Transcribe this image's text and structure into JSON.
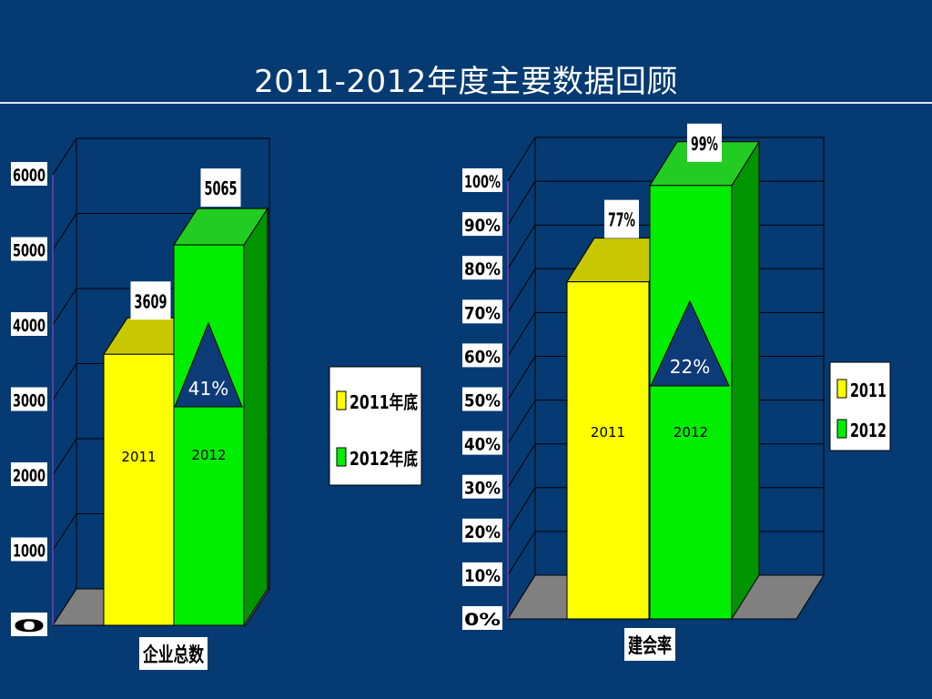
{
  "slide": {
    "title": "2011-2012年度主要数据回顾"
  },
  "colors": {
    "background": "#053a72",
    "yellow": "#ffff00",
    "green": "#00ee00",
    "triangle": "#0d3b77"
  },
  "chart_data": [
    {
      "type": "bar",
      "category": "企业总数",
      "series": [
        {
          "name": "2011年底",
          "values": [
            3609
          ]
        },
        {
          "name": "2012年底",
          "values": [
            5065
          ]
        }
      ],
      "value_labels": [
        "3609",
        "5065"
      ],
      "bar_labels": [
        "2011",
        "2012"
      ],
      "growth_label": "41%",
      "yticks": [
        "0",
        "1000",
        "2000",
        "3000",
        "4000",
        "5000",
        "6000"
      ],
      "ylim": [
        0,
        6000
      ],
      "legend": [
        "2011年底",
        "2012年底"
      ],
      "legend_position": "right"
    },
    {
      "type": "bar",
      "category": "建会率",
      "series": [
        {
          "name": "2011",
          "values": [
            77
          ]
        },
        {
          "name": "2012",
          "values": [
            99
          ]
        }
      ],
      "value_labels": [
        "77%",
        "99%"
      ],
      "bar_labels": [
        "2011",
        "2012"
      ],
      "growth_label": "22%",
      "yticks": [
        "0%",
        "10%",
        "20%",
        "30%",
        "40%",
        "50%",
        "60%",
        "70%",
        "80%",
        "90%",
        "100%"
      ],
      "ylim": [
        0,
        100
      ],
      "legend": [
        "2011",
        "2012"
      ],
      "legend_position": "right"
    }
  ]
}
